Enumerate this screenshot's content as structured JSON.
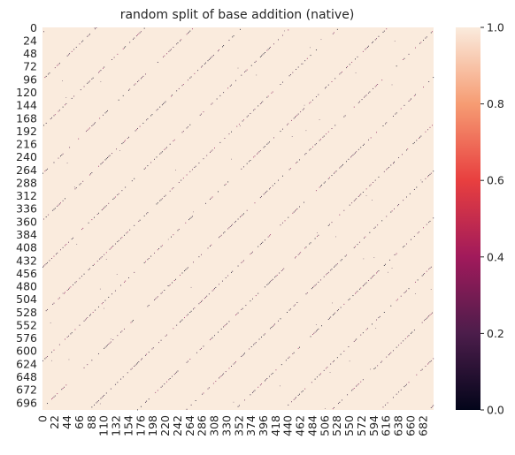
{
  "chart_data": {
    "type": "heatmap",
    "title": "random split of base addition (native)",
    "xlabel": "",
    "ylabel": "",
    "rows": 710,
    "cols": 701,
    "x_tick_labels": [
      "0",
      "22",
      "44",
      "66",
      "88",
      "110",
      "132",
      "154",
      "176",
      "198",
      "220",
      "242",
      "264",
      "286",
      "308",
      "330",
      "352",
      "374",
      "396",
      "418",
      "440",
      "462",
      "484",
      "506",
      "528",
      "550",
      "572",
      "594",
      "616",
      "638",
      "660",
      "682"
    ],
    "y_tick_labels": [
      "0",
      "24",
      "48",
      "72",
      "96",
      "120",
      "144",
      "168",
      "192",
      "216",
      "240",
      "264",
      "288",
      "312",
      "336",
      "360",
      "384",
      "408",
      "432",
      "456",
      "480",
      "504",
      "528",
      "552",
      "576",
      "600",
      "624",
      "648",
      "672",
      "696"
    ],
    "value_range": [
      0.0,
      1.0
    ],
    "dominant_value": 1.0,
    "pattern": "cells are mostly 1.0; sparse cells near 0.0 lie along parallel diagonal stripes running from lower-left to upper-right",
    "colorbar": {
      "ticks": [
        "0.0",
        "0.2",
        "0.4",
        "0.6",
        "0.8",
        "1.0"
      ],
      "colormap": "rocket",
      "colors": [
        "#03051a",
        "#4c1d4b",
        "#a11a5b",
        "#e83f3f",
        "#f69c73",
        "#faebdd"
      ]
    }
  }
}
